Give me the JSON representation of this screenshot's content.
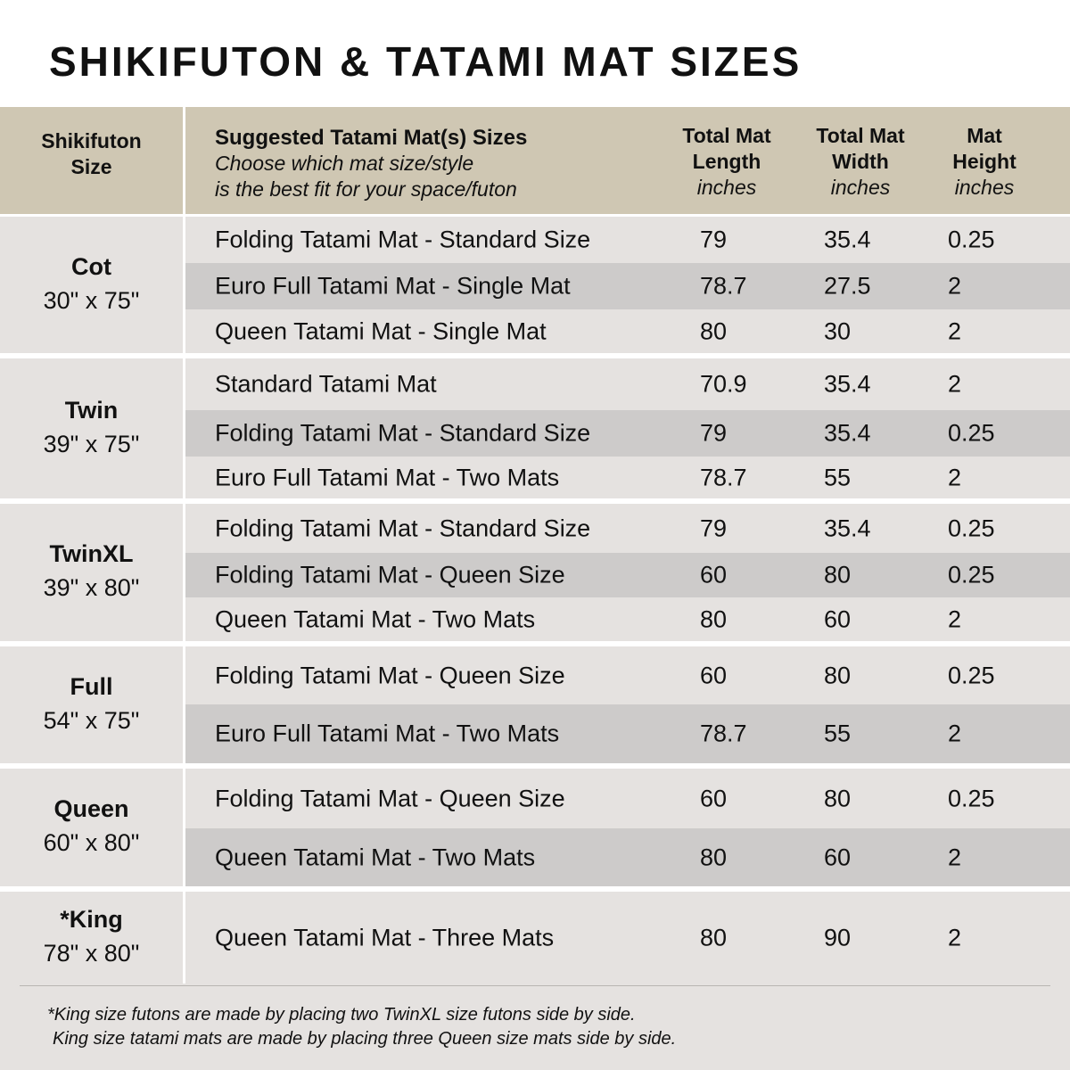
{
  "title": "SHIKIFUTON & TATAMI MAT SIZES",
  "header": {
    "size": [
      "Shikifuton",
      "Size"
    ],
    "mat": "Suggested Tatami Mat(s) Sizes",
    "mat_sub": [
      "Choose which mat size/style",
      "is the best fit for your space/futon"
    ],
    "length": [
      "Total Mat",
      "Length",
      "inches"
    ],
    "width": [
      "Total Mat",
      "Width",
      "inches"
    ],
    "height": [
      "Mat",
      "Height",
      "inches"
    ]
  },
  "groups": [
    {
      "name": "Cot",
      "dims": "30\" x 75\"",
      "rows": [
        [
          "Folding Tatami Mat - Standard Size",
          "79",
          "35.4",
          "0.25"
        ],
        [
          "Euro Full Tatami Mat - Single Mat",
          "78.7",
          "27.5",
          "2"
        ],
        [
          "Queen Tatami Mat - Single Mat",
          "80",
          "30",
          "2"
        ]
      ]
    },
    {
      "name": "Twin",
      "dims": "39\" x 75\"",
      "rows": [
        [
          "Standard Tatami Mat",
          "70.9",
          "35.4",
          "2"
        ],
        [
          "Folding Tatami Mat - Standard Size",
          "79",
          "35.4",
          "0.25"
        ],
        [
          "Euro Full Tatami Mat - Two Mats",
          "78.7",
          "55",
          "2"
        ]
      ]
    },
    {
      "name": "TwinXL",
      "dims": "39\" x 80\"",
      "rows": [
        [
          "Folding Tatami Mat - Standard Size",
          "79",
          "35.4",
          "0.25"
        ],
        [
          "Folding Tatami Mat - Queen Size",
          "60",
          "80",
          "0.25"
        ],
        [
          "Queen Tatami Mat - Two Mats",
          "80",
          "60",
          "2"
        ]
      ]
    },
    {
      "name": "Full",
      "dims": "54\" x 75\"",
      "rows": [
        [
          "Folding Tatami Mat - Queen Size",
          "60",
          "80",
          "0.25"
        ],
        [
          "Euro Full Tatami Mat - Two Mats",
          "78.7",
          "55",
          "2"
        ]
      ]
    },
    {
      "name": "Queen",
      "dims": "60\" x 80\"",
      "rows": [
        [
          "Folding Tatami Mat - Queen Size",
          "60",
          "80",
          "0.25"
        ],
        [
          "Queen Tatami Mat - Two Mats",
          "80",
          "60",
          "2"
        ]
      ]
    },
    {
      "name": "*King",
      "dims": "78\" x 80\"",
      "rows": [
        [
          "Queen Tatami Mat - Three Mats",
          "80",
          "90",
          "2"
        ]
      ]
    }
  ],
  "footnote": [
    "*King size futons are made by placing two TwinXL size futons side by side.",
    "King size tatami mats are made by placing three Queen size mats side by side."
  ]
}
